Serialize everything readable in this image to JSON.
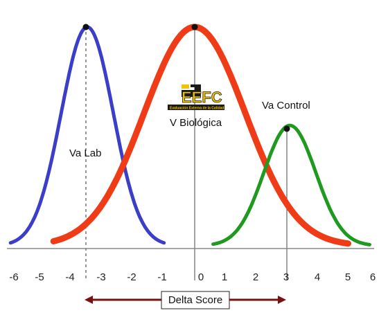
{
  "chart_data": {
    "type": "line",
    "x_ticks": [
      "-6",
      "-5",
      "-4",
      "-3",
      "-2",
      "-1",
      "0",
      "1",
      "2",
      "3",
      "4",
      "5",
      "6"
    ],
    "xlim": [
      -6.3,
      6.2
    ],
    "series": [
      {
        "key": "blue",
        "color": "#3a3ec9",
        "mean": -3.5,
        "sd": 0.85,
        "peak": 1.0,
        "x_range": [
          -6.0,
          -1.0
        ]
      },
      {
        "key": "red",
        "color": "#ef3c17",
        "mean": 0.0,
        "sd": 1.65,
        "peak": 1.0,
        "x_range": [
          -4.6,
          5.0
        ]
      },
      {
        "key": "green",
        "color": "#1f9a1f",
        "mean": 3.1,
        "sd": 0.85,
        "peak": 0.55,
        "x_range": [
          0.6,
          5.7
        ]
      }
    ],
    "annotations": {
      "va_lab": "Va Lab",
      "v_biologica": "V Biológica",
      "va_control": "Va Control"
    },
    "axis_arrow_label": "Delta Score"
  },
  "logo": {
    "letters": "EEFC",
    "tagline": "Evaluación Externa de la Calidad",
    "colors": {
      "yellow": "#f2c200",
      "dark": "#1a1a1a"
    }
  }
}
